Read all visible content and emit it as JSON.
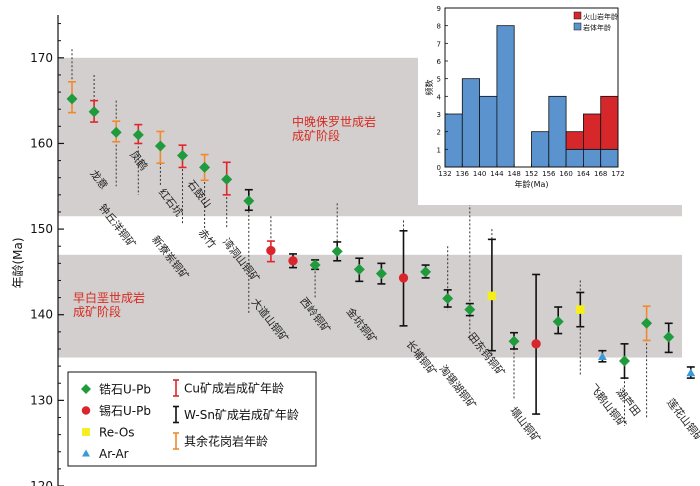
{
  "chart_data": {
    "type": "scatter",
    "ylabel": "年龄(Ma)",
    "ylim": [
      120,
      175
    ],
    "yticks": [
      120,
      130,
      140,
      150,
      160,
      170
    ],
    "bands": [
      {
        "name": "late-jurassic",
        "range": [
          151.5,
          170
        ],
        "label_lines": [
          "中晚侏罗世成岩",
          "成矿阶段"
        ]
      },
      {
        "name": "early-cretaceous",
        "range": [
          135,
          147
        ],
        "label_lines": [
          "早白垩世成岩",
          "成矿阶段"
        ]
      }
    ],
    "points": [
      {
        "x": 1,
        "age": 165.2,
        "marker": "diamond",
        "err": [
          163.6,
          167.2
        ],
        "errcolor": "orange"
      },
      {
        "x": 2,
        "age": 163.7,
        "marker": "diamond",
        "err": [
          162.5,
          165.0
        ],
        "errcolor": "red"
      },
      {
        "x": 3,
        "age": 161.3,
        "marker": "diamond",
        "err": [
          160.2,
          162.6
        ],
        "errcolor": "orange"
      },
      {
        "x": 4,
        "age": 161.0,
        "marker": "diamond",
        "err": [
          160.0,
          162.2
        ],
        "errcolor": "red"
      },
      {
        "x": 5,
        "age": 159.7,
        "marker": "diamond",
        "err": [
          157.7,
          161.4
        ],
        "errcolor": "orange"
      },
      {
        "x": 6,
        "age": 158.6,
        "marker": "diamond",
        "err": [
          157.2,
          159.8
        ],
        "errcolor": "red"
      },
      {
        "x": 7,
        "age": 157.2,
        "marker": "diamond",
        "err": [
          155.7,
          158.7
        ],
        "errcolor": "orange"
      },
      {
        "x": 8,
        "age": 155.8,
        "marker": "diamond",
        "err": [
          154.0,
          157.8
        ],
        "errcolor": "red"
      },
      {
        "x": 9,
        "age": 153.3,
        "marker": "diamond",
        "err": [
          152.2,
          154.6
        ],
        "errcolor": "black"
      },
      {
        "x": 10,
        "age": 147.5,
        "marker": "circle",
        "err": [
          146.2,
          148.6
        ],
        "errcolor": "red"
      },
      {
        "x": 11,
        "age": 146.3,
        "marker": "circle",
        "err": [
          145.5,
          147.1
        ],
        "errcolor": "black"
      },
      {
        "x": 12,
        "age": 145.8,
        "marker": "diamond",
        "err": [
          145.3,
          146.4
        ],
        "errcolor": "black"
      },
      {
        "x": 13,
        "age": 147.4,
        "marker": "diamond",
        "err": [
          146.3,
          148.5
        ],
        "errcolor": "black"
      },
      {
        "x": 14,
        "age": 145.3,
        "marker": "diamond",
        "err": [
          143.9,
          146.6
        ],
        "errcolor": "black"
      },
      {
        "x": 15,
        "age": 144.8,
        "marker": "diamond",
        "err": [
          143.6,
          146.0
        ],
        "errcolor": "black"
      },
      {
        "x": 16,
        "age": 144.3,
        "marker": "circle",
        "err": [
          138.7,
          149.8
        ],
        "errcolor": "black"
      },
      {
        "x": 17,
        "age": 145.0,
        "marker": "diamond",
        "err": [
          144.3,
          145.8
        ],
        "errcolor": "black"
      },
      {
        "x": 18,
        "age": 141.9,
        "marker": "diamond",
        "err": [
          140.9,
          142.9
        ],
        "errcolor": "black"
      },
      {
        "x": 19,
        "age": 140.6,
        "marker": "diamond",
        "err": [
          139.9,
          141.3
        ],
        "errcolor": "black"
      },
      {
        "x": 20,
        "age": 142.2,
        "marker": "square",
        "err": [
          135.8,
          148.8
        ],
        "errcolor": "black"
      },
      {
        "x": 21,
        "age": 136.9,
        "marker": "diamond",
        "err": [
          136.0,
          137.9
        ],
        "errcolor": "black"
      },
      {
        "x": 22,
        "age": 136.6,
        "marker": "circle",
        "err": [
          128.4,
          144.7
        ],
        "errcolor": "black"
      },
      {
        "x": 23,
        "age": 139.2,
        "marker": "diamond",
        "err": [
          137.8,
          140.9
        ],
        "errcolor": "black"
      },
      {
        "x": 24,
        "age": 140.6,
        "marker": "square",
        "err": [
          138.6,
          142.6
        ],
        "errcolor": "black"
      },
      {
        "x": 25,
        "age": 135.1,
        "marker": "triangle",
        "err": [
          134.5,
          135.8
        ],
        "errcolor": "black"
      },
      {
        "x": 26,
        "age": 134.6,
        "marker": "diamond",
        "err": [
          132.6,
          136.6
        ],
        "errcolor": "black"
      },
      {
        "x": 27,
        "age": 139.0,
        "marker": "diamond",
        "err": [
          137.0,
          141.0
        ],
        "errcolor": "orange"
      },
      {
        "x": 28,
        "age": 137.4,
        "marker": "diamond",
        "err": [
          135.6,
          139.0
        ],
        "errcolor": "black"
      },
      {
        "x": 29,
        "age": 133.2,
        "marker": "triangle",
        "err": [
          132.6,
          133.9
        ],
        "errcolor": "black"
      }
    ],
    "guides": [
      {
        "x": 1,
        "range": [
          164,
          171
        ]
      },
      {
        "x": 2,
        "range": [
          162.5,
          168
        ]
      },
      {
        "x": 3,
        "range": [
          155,
          165
        ]
      },
      {
        "x": 4,
        "range": [
          154,
          162
        ]
      },
      {
        "x": 5,
        "range": [
          155,
          161
        ]
      },
      {
        "x": 6,
        "range": [
          150.5,
          157
        ]
      },
      {
        "x": 7,
        "range": [
          150,
          155.5
        ]
      },
      {
        "x": 8,
        "range": [
          150,
          157
        ]
      },
      {
        "x": 9,
        "range": [
          140,
          154
        ]
      },
      {
        "x": 10,
        "range": [
          146,
          151.5
        ]
      },
      {
        "x": 12,
        "range": [
          142,
          146
        ]
      },
      {
        "x": 13,
        "range": [
          146,
          153
        ]
      },
      {
        "x": 16,
        "range": [
          139,
          151
        ]
      },
      {
        "x": 18,
        "range": [
          140.5,
          148
        ]
      },
      {
        "x": 19,
        "range": [
          137,
          153
        ]
      },
      {
        "x": 20,
        "range": [
          135,
          150
        ]
      },
      {
        "x": 21,
        "range": [
          130,
          137
        ]
      },
      {
        "x": 24,
        "range": [
          133,
          144
        ]
      },
      {
        "x": 26,
        "range": [
          127,
          135.5
        ]
      },
      {
        "x": 27,
        "range": [
          128,
          139
        ]
      }
    ],
    "site_labels": [
      {
        "text": "龙意",
        "x": 1.8,
        "age": 156.5
      },
      {
        "text": "钟丘洋铜矿",
        "x": 2.2,
        "age": 152.5
      },
      {
        "text": "凤鹤",
        "x": 3.6,
        "age": 158.7
      },
      {
        "text": "红石坑",
        "x": 4.9,
        "age": 154.3
      },
      {
        "text": "新寮岽铜矿",
        "x": 4.6,
        "age": 148.8
      },
      {
        "text": "石鼓山",
        "x": 6.2,
        "age": 155.3
      },
      {
        "text": "赤竹",
        "x": 6.7,
        "age": 149.6
      },
      {
        "text": "湾洞山铜矿",
        "x": 7.8,
        "age": 148.5
      },
      {
        "text": "大道山铜矿",
        "x": 9.1,
        "age": 141.5
      },
      {
        "text": "西岭铜矿",
        "x": 11.3,
        "age": 141.6
      },
      {
        "text": "金坑铜矿",
        "x": 13.4,
        "age": 140.4
      },
      {
        "text": "长埔铜矿",
        "x": 16.1,
        "age": 136.6
      },
      {
        "text": "田东钨铜矿",
        "x": 18.9,
        "age": 137.5
      },
      {
        "text": "淘锡湖铜矿",
        "x": 17.6,
        "age": 133.7
      },
      {
        "text": "塌山铜矿",
        "x": 20.8,
        "age": 128.8
      },
      {
        "text": "飞鹅山铜矿",
        "x": 24.4,
        "age": 131.5
      },
      {
        "text": "湖芦田",
        "x": 25.6,
        "age": 131.0
      },
      {
        "text": "莲花山铜矿",
        "x": 27.9,
        "age": 129.8
      }
    ],
    "legend": {
      "col1": [
        {
          "label": "锆石U-Pb",
          "marker": "diamond"
        },
        {
          "label": "锡石U-Pb",
          "marker": "circle"
        },
        {
          "label": "Re-Os",
          "marker": "square"
        },
        {
          "label": "Ar-Ar",
          "marker": "triangle"
        }
      ],
      "col2": [
        {
          "label": "Cu矿成岩成矿年龄",
          "color": "red"
        },
        {
          "label": "W-Sn矿成岩成矿年龄",
          "color": "black"
        },
        {
          "label": "其余花岗岩年龄",
          "color": "orange"
        }
      ]
    },
    "inset": {
      "type": "bar",
      "xlabel": "年龄(Ma)",
      "ylabel": "频数",
      "xlim": [
        132,
        172
      ],
      "ylim": [
        0,
        9
      ],
      "xticks": [
        132,
        136,
        140,
        144,
        148,
        152,
        156,
        160,
        164,
        168,
        172
      ],
      "yticks": [
        0,
        1,
        2,
        3,
        4,
        5,
        6,
        7,
        8,
        9
      ],
      "bins": [
        {
          "from": 132,
          "to": 136,
          "rock": 3,
          "volcanic": 0
        },
        {
          "from": 136,
          "to": 140,
          "rock": 5,
          "volcanic": 0
        },
        {
          "from": 140,
          "to": 144,
          "rock": 4,
          "volcanic": 0
        },
        {
          "from": 144,
          "to": 148,
          "rock": 8,
          "volcanic": 0
        },
        {
          "from": 148,
          "to": 152,
          "rock": 0,
          "volcanic": 0
        },
        {
          "from": 152,
          "to": 156,
          "rock": 2,
          "volcanic": 0
        },
        {
          "from": 156,
          "to": 160,
          "rock": 4,
          "volcanic": 0
        },
        {
          "from": 160,
          "to": 164,
          "rock": 1,
          "volcanic": 1
        },
        {
          "from": 164,
          "to": 168,
          "rock": 1,
          "volcanic": 2
        },
        {
          "from": 168,
          "to": 172,
          "rock": 1,
          "volcanic": 3
        }
      ],
      "legend": [
        {
          "label": "火山岩年龄",
          "key": "volcanic"
        },
        {
          "label": "岩体年龄",
          "key": "rock"
        }
      ]
    }
  },
  "colors": {
    "band": "#d3cfcf",
    "green": "#1f9a3c",
    "red_marker": "#d8262c",
    "yellow": "#f4ee1c",
    "blue_tri": "#3a9ad9",
    "err_red": "#e0262a",
    "err_orange": "#ef8a2e",
    "err_black": "#111111",
    "bar_blue": "#5b93cf",
    "bar_red": "#d6272b",
    "text_red": "#d62a20"
  }
}
